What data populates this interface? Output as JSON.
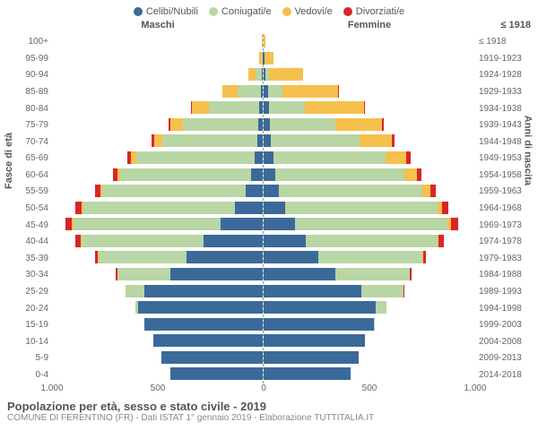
{
  "legend": [
    {
      "label": "Celibi/Nubili",
      "color": "#3b6a9a"
    },
    {
      "label": "Coniugati/e",
      "color": "#b9d6a5"
    },
    {
      "label": "Vedovi/e",
      "color": "#f6c04d"
    },
    {
      "label": "Divorziati/e",
      "color": "#d62728"
    }
  ],
  "headers": {
    "male": "Maschi",
    "female": "Femmine",
    "right_sample": "≤ 1918"
  },
  "axis_titles": {
    "left": "Fasce di età",
    "right": "Anni di nascita"
  },
  "x_axis": {
    "max": 1000,
    "ticks": [
      {
        "label": "1.000",
        "value": -1000
      },
      {
        "label": "500",
        "value": -500
      },
      {
        "label": "0",
        "value": 0
      },
      {
        "label": "500",
        "value": 500
      },
      {
        "label": "1.000",
        "value": 1000
      }
    ]
  },
  "colors": {
    "celibi": "#3b6a9a",
    "coniugati": "#b9d6a5",
    "vedovi": "#f6c04d",
    "divorziati": "#d62728",
    "grid": "#e0e0e0",
    "background": "#ffffff",
    "text": "#666666",
    "divider": "#ffffff"
  },
  "footer": {
    "title": "Popolazione per età, sesso e stato civile - 2019",
    "subtitle": "COMUNE DI FERENTINO (FR) - Dati ISTAT 1° gennaio 2019 - Elaborazione TUTTITALIA.IT"
  },
  "rows": [
    {
      "age": "100+",
      "birth": "≤ 1918",
      "m": {
        "c": 0,
        "co": 0,
        "v": 5,
        "d": 0
      },
      "f": {
        "c": 0,
        "co": 0,
        "v": 8,
        "d": 0
      }
    },
    {
      "age": "95-99",
      "birth": "1919-1923",
      "m": {
        "c": 2,
        "co": 3,
        "v": 12,
        "d": 0
      },
      "f": {
        "c": 3,
        "co": 2,
        "v": 40,
        "d": 0
      }
    },
    {
      "age": "90-94",
      "birth": "1924-1928",
      "m": {
        "c": 5,
        "co": 30,
        "v": 35,
        "d": 0
      },
      "f": {
        "c": 10,
        "co": 15,
        "v": 160,
        "d": 0
      }
    },
    {
      "age": "85-89",
      "birth": "1929-1933",
      "m": {
        "c": 10,
        "co": 110,
        "v": 70,
        "d": 3
      },
      "f": {
        "c": 20,
        "co": 70,
        "v": 260,
        "d": 3
      }
    },
    {
      "age": "80-84",
      "birth": "1934-1938",
      "m": {
        "c": 15,
        "co": 240,
        "v": 80,
        "d": 5
      },
      "f": {
        "c": 25,
        "co": 170,
        "v": 280,
        "d": 5
      }
    },
    {
      "age": "75-79",
      "birth": "1939-1943",
      "m": {
        "c": 20,
        "co": 360,
        "v": 60,
        "d": 8
      },
      "f": {
        "c": 30,
        "co": 310,
        "v": 220,
        "d": 8
      }
    },
    {
      "age": "70-74",
      "birth": "1944-1948",
      "m": {
        "c": 25,
        "co": 450,
        "v": 40,
        "d": 12
      },
      "f": {
        "c": 35,
        "co": 420,
        "v": 150,
        "d": 12
      }
    },
    {
      "age": "65-69",
      "birth": "1949-1953",
      "m": {
        "c": 40,
        "co": 560,
        "v": 25,
        "d": 18
      },
      "f": {
        "c": 45,
        "co": 530,
        "v": 100,
        "d": 18
      }
    },
    {
      "age": "60-64",
      "birth": "1954-1958",
      "m": {
        "c": 55,
        "co": 620,
        "v": 15,
        "d": 22
      },
      "f": {
        "c": 55,
        "co": 610,
        "v": 60,
        "d": 22
      }
    },
    {
      "age": "55-59",
      "birth": "1959-1963",
      "m": {
        "c": 80,
        "co": 680,
        "v": 10,
        "d": 25
      },
      "f": {
        "c": 70,
        "co": 680,
        "v": 40,
        "d": 25
      }
    },
    {
      "age": "50-54",
      "birth": "1964-1968",
      "m": {
        "c": 130,
        "co": 720,
        "v": 8,
        "d": 30
      },
      "f": {
        "c": 100,
        "co": 720,
        "v": 25,
        "d": 30
      }
    },
    {
      "age": "45-49",
      "birth": "1969-1973",
      "m": {
        "c": 200,
        "co": 700,
        "v": 5,
        "d": 30
      },
      "f": {
        "c": 150,
        "co": 720,
        "v": 15,
        "d": 35
      }
    },
    {
      "age": "40-44",
      "birth": "1974-1978",
      "m": {
        "c": 280,
        "co": 580,
        "v": 3,
        "d": 25
      },
      "f": {
        "c": 200,
        "co": 620,
        "v": 8,
        "d": 25
      }
    },
    {
      "age": "35-39",
      "birth": "1979-1983",
      "m": {
        "c": 360,
        "co": 420,
        "v": 2,
        "d": 15
      },
      "f": {
        "c": 260,
        "co": 490,
        "v": 4,
        "d": 15
      }
    },
    {
      "age": "30-34",
      "birth": "1984-1988",
      "m": {
        "c": 440,
        "co": 250,
        "v": 0,
        "d": 8
      },
      "f": {
        "c": 340,
        "co": 350,
        "v": 2,
        "d": 8
      }
    },
    {
      "age": "25-29",
      "birth": "1989-1993",
      "m": {
        "c": 560,
        "co": 90,
        "v": 0,
        "d": 3
      },
      "f": {
        "c": 460,
        "co": 200,
        "v": 0,
        "d": 3
      }
    },
    {
      "age": "20-24",
      "birth": "1994-1998",
      "m": {
        "c": 590,
        "co": 15,
        "v": 0,
        "d": 0
      },
      "f": {
        "c": 530,
        "co": 50,
        "v": 0,
        "d": 0
      }
    },
    {
      "age": "15-19",
      "birth": "1999-2003",
      "m": {
        "c": 560,
        "co": 0,
        "v": 0,
        "d": 0
      },
      "f": {
        "c": 520,
        "co": 2,
        "v": 0,
        "d": 0
      }
    },
    {
      "age": "10-14",
      "birth": "2004-2008",
      "m": {
        "c": 520,
        "co": 0,
        "v": 0,
        "d": 0
      },
      "f": {
        "c": 480,
        "co": 0,
        "v": 0,
        "d": 0
      }
    },
    {
      "age": "5-9",
      "birth": "2009-2013",
      "m": {
        "c": 480,
        "co": 0,
        "v": 0,
        "d": 0
      },
      "f": {
        "c": 450,
        "co": 0,
        "v": 0,
        "d": 0
      }
    },
    {
      "age": "0-4",
      "birth": "2014-2018",
      "m": {
        "c": 440,
        "co": 0,
        "v": 0,
        "d": 0
      },
      "f": {
        "c": 410,
        "co": 0,
        "v": 0,
        "d": 0
      }
    }
  ]
}
